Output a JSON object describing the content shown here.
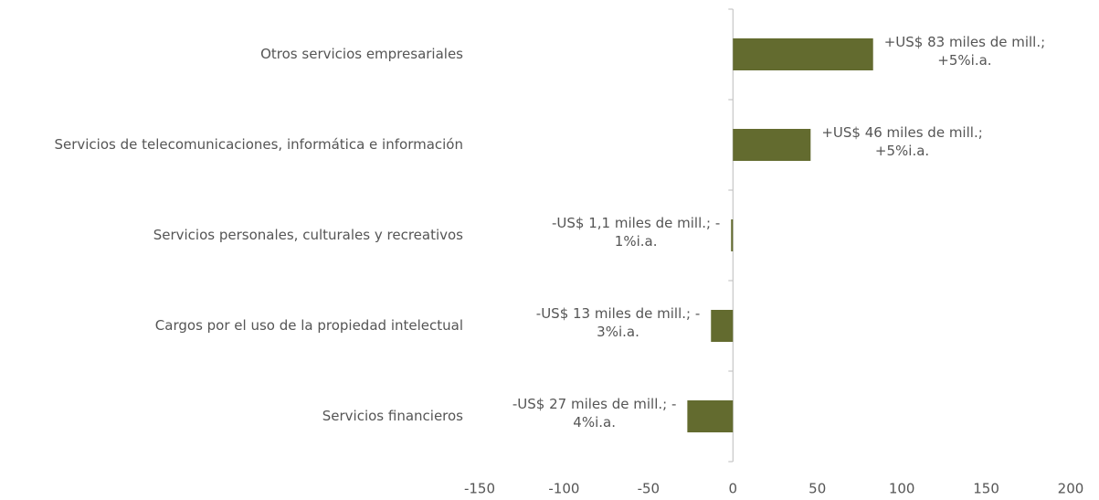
{
  "chart_data": {
    "type": "bar",
    "orientation": "horizontal",
    "categories": [
      "Otros servicios empresariales",
      "Servicios de telecomunicaciones, informática e información",
      "Servicios personales, culturales y recreativos",
      "Cargos por el uso de la propiedad intelectual",
      "Servicios financieros"
    ],
    "values": [
      83,
      46,
      -1.1,
      -13,
      -27
    ],
    "value_labels": [
      [
        "+US$ 83 miles de mill.;",
        "+5%i.a."
      ],
      [
        "+US$ 46 miles de mill.;",
        "+5%i.a."
      ],
      [
        "-US$ 1,1 miles de mill.; -",
        "1%i.a."
      ],
      [
        "-US$ 13 miles de mill.; -",
        "3%i.a."
      ],
      [
        "-US$ 27 miles de mill.; -",
        "4%i.a."
      ]
    ],
    "color": "#636b2f",
    "xlim": [
      -150,
      200
    ],
    "xticks": [
      -150,
      -100,
      -50,
      0,
      50,
      100,
      150,
      200
    ],
    "grid": false
  }
}
